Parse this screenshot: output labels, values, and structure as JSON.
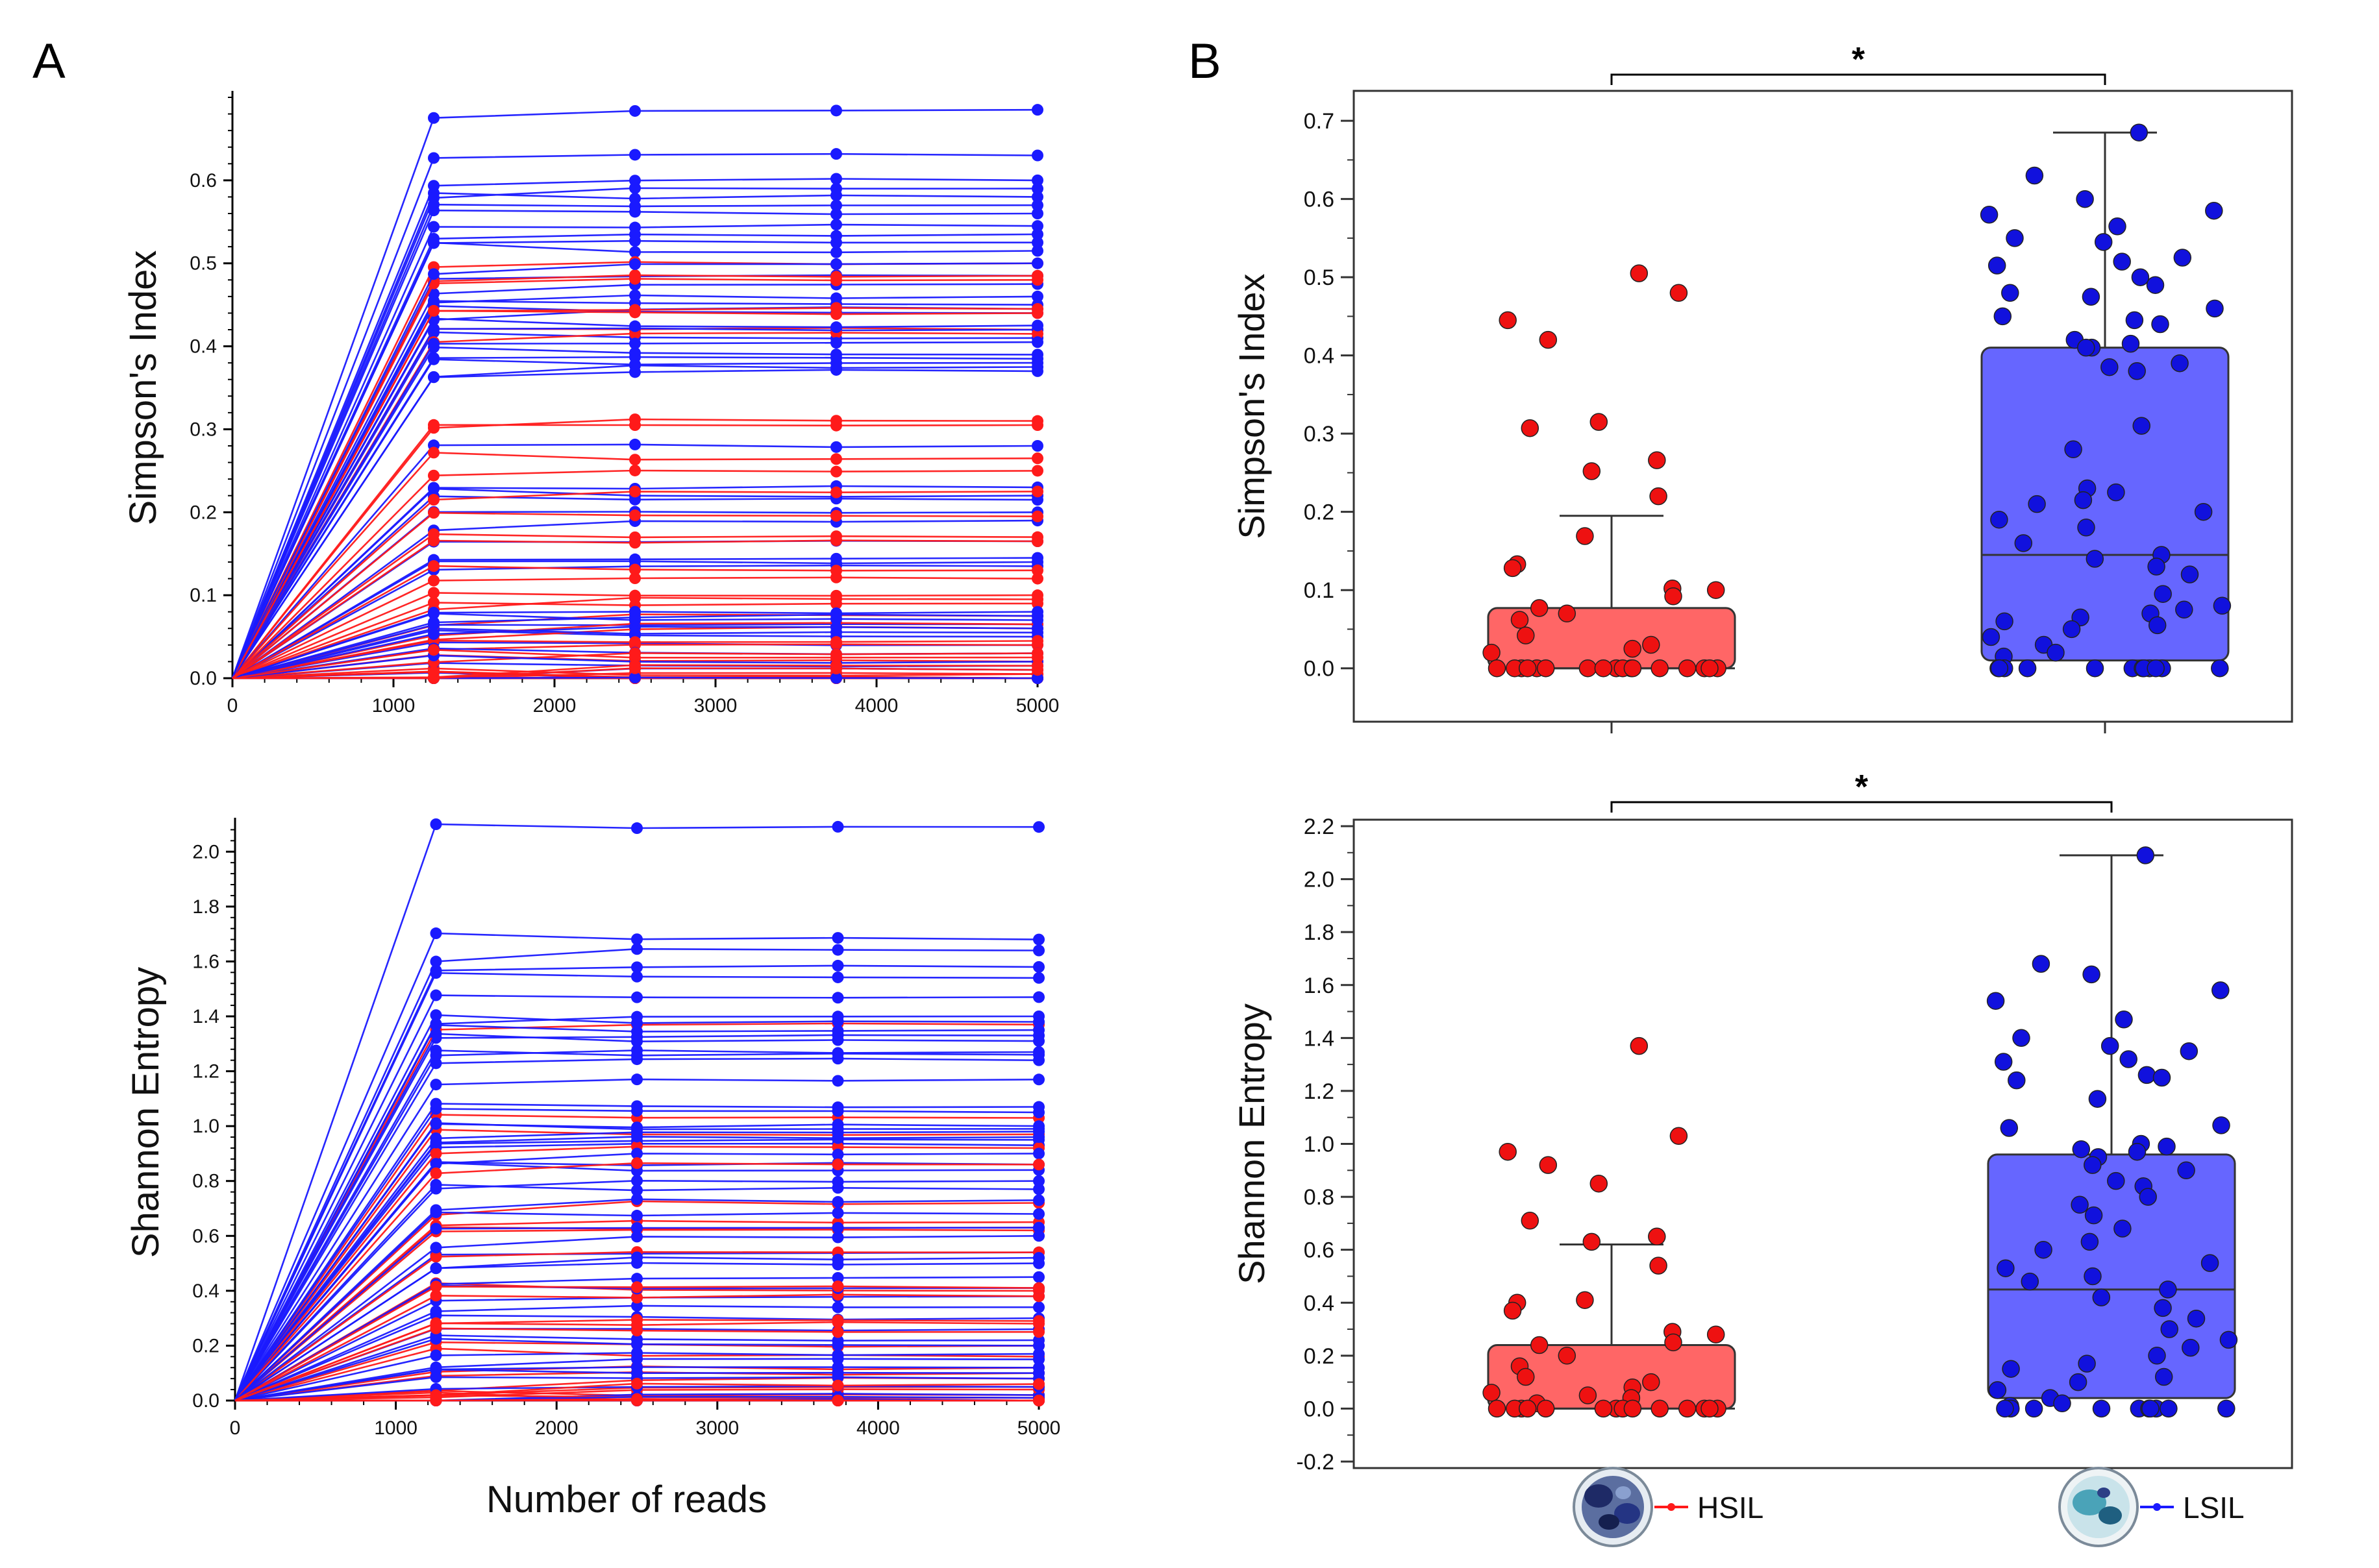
{
  "panels": {
    "a": "A",
    "b": "B"
  },
  "colors": {
    "hsil": "#ff1a1a",
    "lsil": "#1a1aff",
    "hsil_box": "#ff6666",
    "lsil_box": "#6666ff",
    "hsil_point": "#ee1111",
    "lsil_point": "#1111dd"
  },
  "rarefaction_xlabel": "Number of reads",
  "legend": {
    "hsil": "HSIL",
    "lsil": "LSIL"
  },
  "significance": {
    "simpson": "*",
    "shannon": "*"
  },
  "chart_data": [
    {
      "id": "A-simpson",
      "type": "line",
      "title": "",
      "xlabel": "",
      "ylabel": "Simpson's Index",
      "xlim": [
        0,
        5000
      ],
      "ylim": [
        0,
        0.7
      ],
      "x": [
        0,
        1250,
        2500,
        3750,
        5000
      ],
      "xticks": [
        "0",
        "1000",
        "2000",
        "3000",
        "4000",
        "5000"
      ],
      "yticks": [
        "0.0",
        "0.1",
        "0.2",
        "0.3",
        "0.4",
        "0.5",
        "0.6"
      ],
      "series": [
        {
          "name": "HSIL",
          "final_values": [
            0.5,
            0.485,
            0.48,
            0.445,
            0.44,
            0.42,
            0.415,
            0.31,
            0.305,
            0.265,
            0.25,
            0.225,
            0.195,
            0.17,
            0.165,
            0.13,
            0.12,
            0.1,
            0.095,
            0.09,
            0.075,
            0.065,
            0.06,
            0.045,
            0.04,
            0.03,
            0.025,
            0.02,
            0.015,
            0.01,
            0.005,
            0.005,
            0.0,
            0.0,
            0.0,
            0.0,
            0.0,
            0.0,
            0.0
          ]
        },
        {
          "name": "LSIL",
          "final_values": [
            0.685,
            0.63,
            0.6,
            0.59,
            0.58,
            0.57,
            0.56,
            0.545,
            0.535,
            0.525,
            0.515,
            0.5,
            0.485,
            0.475,
            0.46,
            0.45,
            0.445,
            0.44,
            0.425,
            0.42,
            0.41,
            0.405,
            0.39,
            0.385,
            0.38,
            0.375,
            0.37,
            0.28,
            0.23,
            0.22,
            0.215,
            0.2,
            0.19,
            0.165,
            0.145,
            0.14,
            0.135,
            0.08,
            0.075,
            0.07,
            0.065,
            0.06,
            0.055,
            0.05,
            0.04,
            0.03,
            0.02,
            0.015,
            0.01,
            0.0,
            0.0,
            0.0,
            0.0,
            0.0
          ]
        }
      ]
    },
    {
      "id": "A-shannon",
      "type": "line",
      "title": "",
      "xlabel": "Number of reads",
      "ylabel": "Shannon Entropy",
      "xlim": [
        0,
        5000
      ],
      "ylim": [
        0,
        2.1
      ],
      "x": [
        0,
        1250,
        2500,
        3750,
        5000
      ],
      "xticks": [
        "0",
        "1000",
        "2000",
        "3000",
        "4000",
        "5000"
      ],
      "yticks": [
        "0.0",
        "0.2",
        "0.4",
        "0.6",
        "0.8",
        "1.0",
        "1.2",
        "1.4",
        "1.6",
        "1.8",
        "2.0"
      ],
      "series": [
        {
          "name": "HSIL",
          "final_values": [
            1.37,
            1.03,
            0.97,
            0.92,
            0.86,
            0.72,
            0.65,
            0.63,
            0.62,
            0.54,
            0.41,
            0.4,
            0.38,
            0.29,
            0.28,
            0.25,
            0.2,
            0.16,
            0.12,
            0.1,
            0.08,
            0.06,
            0.05,
            0.04,
            0.02,
            0.01,
            0.0,
            0.0,
            0.0,
            0.0,
            0.0,
            0.0
          ]
        },
        {
          "name": "LSIL",
          "final_values": [
            2.09,
            1.68,
            1.64,
            1.58,
            1.54,
            1.47,
            1.4,
            1.38,
            1.35,
            1.33,
            1.31,
            1.27,
            1.26,
            1.24,
            1.17,
            1.07,
            1.05,
            1.0,
            0.99,
            0.98,
            0.96,
            0.95,
            0.93,
            0.9,
            0.86,
            0.84,
            0.8,
            0.77,
            0.73,
            0.68,
            0.63,
            0.6,
            0.54,
            0.52,
            0.5,
            0.45,
            0.41,
            0.38,
            0.34,
            0.3,
            0.26,
            0.22,
            0.2,
            0.17,
            0.15,
            0.12,
            0.1,
            0.08,
            0.05,
            0.02,
            0.01,
            0.0,
            0.0,
            0.0
          ]
        }
      ]
    },
    {
      "id": "B-simpson",
      "type": "box",
      "title": "",
      "xlabel": "",
      "ylabel": "Simpson's Index",
      "ylim": [
        -0.06,
        0.73
      ],
      "yticks": [
        "0.0",
        "0.1",
        "0.2",
        "0.3",
        "0.4",
        "0.5",
        "0.6",
        "0.7"
      ],
      "categories": [
        "HSIL",
        "LSIL"
      ],
      "boxes": [
        {
          "group": "HSIL",
          "q1": 0.0,
          "median": 0.0,
          "q3": 0.077,
          "whisker_low": 0.0,
          "whisker_high": 0.195,
          "points": [
            0.505,
            0.48,
            0.445,
            0.42,
            0.315,
            0.307,
            0.266,
            0.252,
            0.22,
            0.169,
            0.133,
            0.128,
            0.102,
            0.1,
            0.092,
            0.077,
            0.07,
            0.062,
            0.042,
            0.03,
            0.025,
            0.02,
            0.0,
            0.0,
            0.0,
            0.0,
            0.0,
            0.0,
            0.0,
            0.0,
            0.0,
            0.0,
            0.0,
            0.0,
            0.0,
            0.0,
            0.0,
            0.0,
            0.0
          ]
        },
        {
          "group": "LSIL",
          "q1": 0.01,
          "median": 0.145,
          "q3": 0.41,
          "whisker_low": 0.0,
          "whisker_high": 0.685,
          "points": [
            0.685,
            0.63,
            0.6,
            0.585,
            0.58,
            0.565,
            0.55,
            0.545,
            0.525,
            0.52,
            0.515,
            0.5,
            0.49,
            0.48,
            0.475,
            0.46,
            0.45,
            0.445,
            0.44,
            0.42,
            0.415,
            0.41,
            0.41,
            0.39,
            0.385,
            0.38,
            0.31,
            0.28,
            0.23,
            0.225,
            0.215,
            0.21,
            0.2,
            0.19,
            0.18,
            0.16,
            0.145,
            0.14,
            0.13,
            0.12,
            0.095,
            0.08,
            0.075,
            0.07,
            0.065,
            0.06,
            0.055,
            0.05,
            0.04,
            0.03,
            0.02,
            0.015,
            0.0,
            0.0,
            0.0,
            0.0,
            0.0,
            0.0,
            0.0,
            0.0,
            0.0,
            0.0,
            0.0,
            0.0
          ]
        }
      ]
    },
    {
      "id": "B-shannon",
      "type": "box",
      "title": "",
      "xlabel": "",
      "ylabel": "Shannon Entropy",
      "ylim": [
        -0.2,
        2.2
      ],
      "yticks": [
        "-0.2",
        "0.0",
        "0.2",
        "0.4",
        "0.6",
        "0.8",
        "1.0",
        "1.2",
        "1.4",
        "1.6",
        "1.8",
        "2.0",
        "2.2"
      ],
      "categories": [
        "HSIL",
        "LSIL"
      ],
      "boxes": [
        {
          "group": "HSIL",
          "q1": 0.0,
          "median": 0.0,
          "q3": 0.24,
          "whisker_low": 0.0,
          "whisker_high": 0.62,
          "points": [
            1.37,
            1.03,
            0.97,
            0.92,
            0.85,
            0.71,
            0.65,
            0.63,
            0.54,
            0.41,
            0.4,
            0.37,
            0.29,
            0.28,
            0.25,
            0.24,
            0.2,
            0.16,
            0.12,
            0.1,
            0.08,
            0.06,
            0.05,
            0.04,
            0.02,
            0.0,
            0.0,
            0.0,
            0.0,
            0.0,
            0.0,
            0.0,
            0.0,
            0.0,
            0.0,
            0.0,
            0.0,
            0.0,
            0.0
          ]
        },
        {
          "group": "LSIL",
          "q1": 0.04,
          "median": 0.45,
          "q3": 0.96,
          "whisker_low": 0.0,
          "whisker_high": 2.09,
          "points": [
            2.09,
            1.68,
            1.64,
            1.58,
            1.54,
            1.47,
            1.4,
            1.37,
            1.35,
            1.32,
            1.31,
            1.26,
            1.25,
            1.24,
            1.17,
            1.07,
            1.06,
            1.0,
            0.99,
            0.98,
            0.97,
            0.95,
            0.92,
            0.9,
            0.86,
            0.84,
            0.8,
            0.77,
            0.73,
            0.68,
            0.63,
            0.6,
            0.55,
            0.53,
            0.5,
            0.48,
            0.45,
            0.42,
            0.38,
            0.34,
            0.3,
            0.26,
            0.23,
            0.2,
            0.17,
            0.15,
            0.12,
            0.1,
            0.07,
            0.04,
            0.02,
            0.01,
            0.0,
            0.0,
            0.0,
            0.0,
            0.0,
            0.0,
            0.0,
            0.0,
            0.0,
            0.0
          ]
        }
      ]
    }
  ]
}
